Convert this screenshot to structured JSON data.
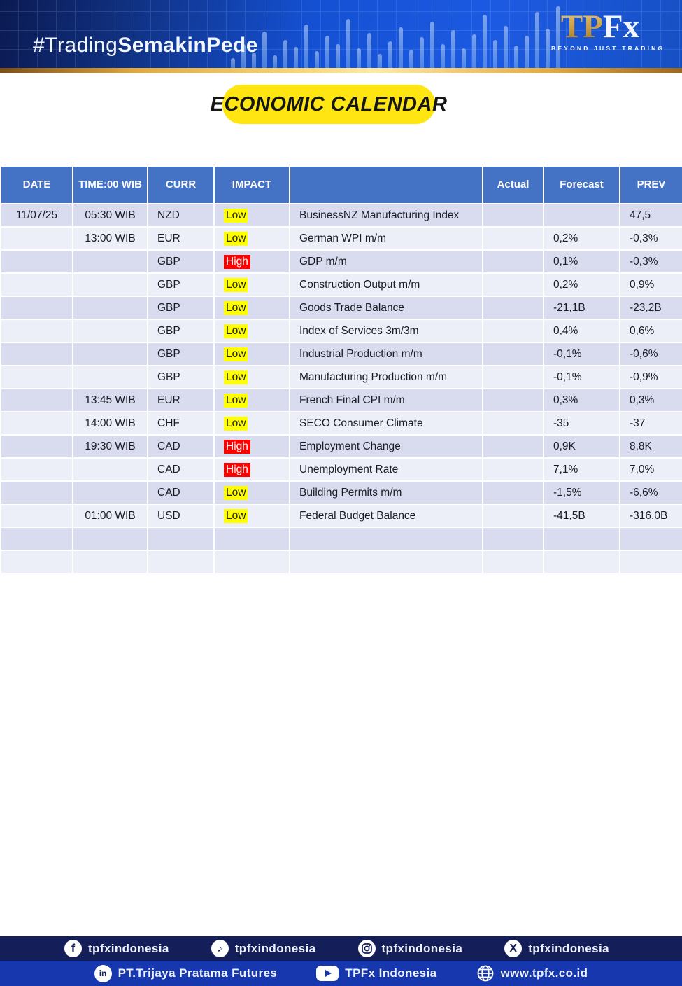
{
  "header": {
    "hashtag_regular": "#Trading",
    "hashtag_bold": "SemakinPede",
    "logo": {
      "tp": "TP",
      "fx": "Fx",
      "tagline": "BEYOND JUST TRADING"
    }
  },
  "title": {
    "label": "ECONOMIC CALENDAR"
  },
  "table": {
    "columns": [
      "DATE",
      "TIME:00 WIB",
      "CURR",
      "IMPACT",
      "",
      "Actual",
      "Forecast",
      "PREV"
    ],
    "rows": [
      {
        "date": "11/07/25",
        "time": "05:30 WIB",
        "curr": "NZD",
        "impact": "Low",
        "event": "BusinessNZ Manufacturing Index",
        "actual": "",
        "forecast": "",
        "prev": "47,5"
      },
      {
        "date": "",
        "time": "13:00 WIB",
        "curr": "EUR",
        "impact": "Low",
        "event": "German WPI m/m",
        "actual": "",
        "forecast": "0,2%",
        "prev": "-0,3%"
      },
      {
        "date": "",
        "time": "",
        "curr": "GBP",
        "impact": "High",
        "event": "GDP m/m",
        "actual": "",
        "forecast": "0,1%",
        "prev": "-0,3%"
      },
      {
        "date": "",
        "time": "",
        "curr": "GBP",
        "impact": "Low",
        "event": "Construction Output m/m",
        "actual": "",
        "forecast": "0,2%",
        "prev": "0,9%"
      },
      {
        "date": "",
        "time": "",
        "curr": "GBP",
        "impact": "Low",
        "event": "Goods Trade Balance",
        "actual": "",
        "forecast": "-21,1B",
        "prev": "-23,2B"
      },
      {
        "date": "",
        "time": "",
        "curr": "GBP",
        "impact": "Low",
        "event": "Index of Services 3m/3m",
        "actual": "",
        "forecast": "0,4%",
        "prev": "0,6%"
      },
      {
        "date": "",
        "time": "",
        "curr": "GBP",
        "impact": "Low",
        "event": "Industrial Production m/m",
        "actual": "",
        "forecast": "-0,1%",
        "prev": "-0,6%"
      },
      {
        "date": "",
        "time": "",
        "curr": "GBP",
        "impact": "Low",
        "event": "Manufacturing Production m/m",
        "actual": "",
        "forecast": "-0,1%",
        "prev": "-0,9%"
      },
      {
        "date": "",
        "time": "13:45 WIB",
        "curr": "EUR",
        "impact": "Low",
        "event": "French Final CPI m/m",
        "actual": "",
        "forecast": "0,3%",
        "prev": "0,3%"
      },
      {
        "date": "",
        "time": "14:00 WIB",
        "curr": "CHF",
        "impact": "Low",
        "event": "SECO Consumer Climate",
        "actual": "",
        "forecast": "-35",
        "prev": "-37"
      },
      {
        "date": "",
        "time": "19:30 WIB",
        "curr": "CAD",
        "impact": "High",
        "event": "Employment Change",
        "actual": "",
        "forecast": "0,9K",
        "prev": "8,8K"
      },
      {
        "date": "",
        "time": "",
        "curr": "CAD",
        "impact": "High",
        "event": "Unemployment Rate",
        "actual": "",
        "forecast": "7,1%",
        "prev": "7,0%"
      },
      {
        "date": "",
        "time": "",
        "curr": "CAD",
        "impact": "Low",
        "event": "Building Permits m/m",
        "actual": "",
        "forecast": "-1,5%",
        "prev": "-6,6%"
      },
      {
        "date": "",
        "time": "01:00 WIB",
        "curr": "USD",
        "impact": "Low",
        "event": "Federal Budget Balance",
        "actual": "",
        "forecast": "-41,5B",
        "prev": "-316,0B"
      },
      {
        "date": "",
        "time": "",
        "curr": "",
        "impact": "",
        "event": "",
        "actual": "",
        "forecast": "",
        "prev": ""
      },
      {
        "date": "",
        "time": "",
        "curr": "",
        "impact": "",
        "event": "",
        "actual": "",
        "forecast": "",
        "prev": ""
      }
    ]
  },
  "footer": {
    "row1": [
      {
        "icon": "facebook-icon",
        "glyph": "f",
        "label": "tpfxindonesia"
      },
      {
        "icon": "tiktok-icon",
        "glyph": "♪",
        "label": "tpfxindonesia"
      },
      {
        "icon": "instagram-icon",
        "glyph": "",
        "label": "tpfxindonesia"
      },
      {
        "icon": "x-twitter-icon",
        "glyph": "X",
        "label": "tpfxindonesia"
      }
    ],
    "row2": [
      {
        "icon": "linkedin-icon",
        "glyph": "in",
        "label": "PT.Trijaya Pratama Futures"
      },
      {
        "icon": "youtube-icon",
        "glyph": "",
        "label": "TPFx Indonesia"
      },
      {
        "icon": "globe-icon",
        "glyph": "",
        "label": "www.tpfx.co.id"
      }
    ]
  },
  "colors": {
    "table_header_bg": "#4472c4",
    "row_band_dark": "#d8dcee",
    "row_band_light": "#edeff8",
    "impact_low_bg": "#ffff00",
    "impact_high_bg": "#ff0000",
    "title_pill_bg": "#ffe612",
    "footer_top_bg": "#141f5a",
    "footer_bottom_bg": "#1637ae",
    "accent_gold": "#d9a43b"
  }
}
